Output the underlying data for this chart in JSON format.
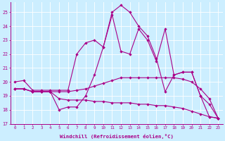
{
  "xlabel": "Windchill (Refroidissement éolien,°C)",
  "background_color": "#cceeff",
  "grid_color": "#ffffff",
  "line_color": "#aa0088",
  "xlim": [
    -0.5,
    23.5
  ],
  "ylim": [
    17,
    25.7
  ],
  "yticks": [
    17,
    18,
    19,
    20,
    21,
    22,
    23,
    24,
    25
  ],
  "xticks": [
    0,
    1,
    2,
    3,
    4,
    5,
    6,
    7,
    8,
    9,
    10,
    11,
    12,
    13,
    14,
    15,
    16,
    17,
    18,
    19,
    20,
    21,
    22,
    23
  ],
  "series": [
    {
      "x": [
        0,
        1,
        2,
        3,
        4,
        5,
        6,
        7,
        8,
        9,
        10,
        11,
        12,
        13,
        14,
        15,
        16,
        17,
        18,
        19,
        20,
        21,
        22,
        23
      ],
      "y": [
        19.5,
        19.5,
        19.3,
        19.3,
        19.3,
        18.0,
        18.2,
        18.2,
        19.0,
        20.5,
        22.5,
        25.0,
        25.5,
        25.0,
        24.0,
        23.3,
        21.7,
        19.3,
        20.5,
        20.7,
        20.7,
        19.0,
        17.5,
        17.4
      ]
    },
    {
      "x": [
        0,
        1,
        2,
        3,
        4,
        5,
        6,
        7,
        8,
        9,
        10,
        11,
        12,
        13,
        14,
        15,
        16,
        17,
        18,
        19,
        20,
        21,
        22,
        23
      ],
      "y": [
        20.0,
        20.1,
        19.4,
        19.4,
        19.4,
        19.4,
        19.4,
        22.0,
        22.8,
        23.0,
        22.5,
        24.8,
        22.2,
        22.0,
        23.8,
        23.0,
        21.5,
        23.8,
        20.5,
        20.7,
        20.7,
        19.0,
        18.4,
        17.4
      ]
    },
    {
      "x": [
        0,
        1,
        2,
        3,
        4,
        5,
        6,
        7,
        8,
        9,
        10,
        11,
        12,
        13,
        14,
        15,
        16,
        17,
        18,
        19,
        20,
        21,
        22,
        23
      ],
      "y": [
        19.5,
        19.5,
        19.3,
        19.3,
        19.3,
        19.3,
        19.3,
        19.4,
        19.5,
        19.7,
        19.9,
        20.1,
        20.3,
        20.3,
        20.3,
        20.3,
        20.3,
        20.3,
        20.3,
        20.2,
        20.0,
        19.5,
        18.8,
        17.4
      ]
    },
    {
      "x": [
        0,
        1,
        2,
        3,
        4,
        5,
        6,
        7,
        8,
        9,
        10,
        11,
        12,
        13,
        14,
        15,
        16,
        17,
        18,
        19,
        20,
        21,
        22,
        23
      ],
      "y": [
        19.5,
        19.5,
        19.3,
        19.3,
        19.3,
        18.8,
        18.7,
        18.7,
        18.7,
        18.6,
        18.6,
        18.5,
        18.5,
        18.5,
        18.4,
        18.4,
        18.3,
        18.3,
        18.2,
        18.1,
        17.9,
        17.7,
        17.5,
        17.4
      ]
    }
  ]
}
